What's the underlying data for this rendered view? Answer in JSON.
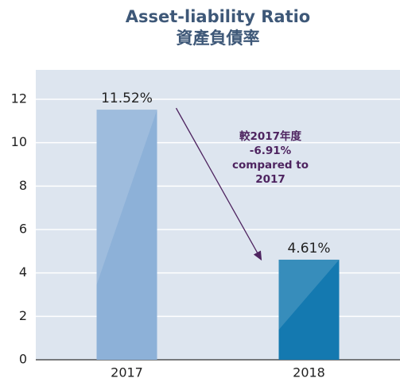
{
  "chart_data": {
    "type": "bar",
    "title": [
      "Asset-liability Ratio",
      "資產負債率"
    ],
    "categories": [
      "2017",
      "2018"
    ],
    "values": [
      11.52,
      4.61
    ],
    "value_labels": [
      "11.52%",
      "4.61%"
    ],
    "colors": [
      "#8db1d8",
      "#1479b0"
    ],
    "annotation": [
      "較2017年度",
      "-6.91%",
      "compared to",
      "2017"
    ],
    "ylim": [
      0,
      12
    ],
    "yticks": [
      0,
      2,
      4,
      6,
      8,
      10,
      12
    ],
    "grid": true
  }
}
